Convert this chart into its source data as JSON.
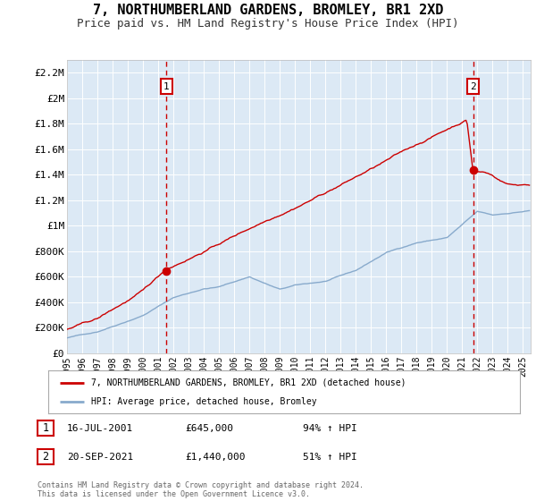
{
  "title": "7, NORTHUMBERLAND GARDENS, BROMLEY, BR1 2XD",
  "subtitle": "Price paid vs. HM Land Registry's House Price Index (HPI)",
  "title_fontsize": 11,
  "subtitle_fontsize": 9,
  "plot_bg_color": "#dce9f5",
  "fig_bg_color": "#ffffff",
  "ylim": [
    0,
    2300000
  ],
  "yticks": [
    0,
    200000,
    400000,
    600000,
    800000,
    1000000,
    1200000,
    1400000,
    1600000,
    1800000,
    2000000,
    2200000
  ],
  "ytick_labels": [
    "£0",
    "£200K",
    "£400K",
    "£600K",
    "£800K",
    "£1M",
    "£1.2M",
    "£1.4M",
    "£1.6M",
    "£1.8M",
    "£2M",
    "£2.2M"
  ],
  "xlim_start": 1995.0,
  "xlim_end": 2025.5,
  "sale1_x": 2001.54,
  "sale1_y": 645000,
  "sale1_label": "1",
  "sale1_date": "16-JUL-2001",
  "sale1_price": "£645,000",
  "sale1_hpi": "94% ↑ HPI",
  "sale2_x": 2021.72,
  "sale2_y": 1440000,
  "sale2_label": "2",
  "sale2_date": "20-SEP-2021",
  "sale2_price": "£1,440,000",
  "sale2_hpi": "51% ↑ HPI",
  "line1_color": "#cc0000",
  "line2_color": "#88aacc",
  "legend1_label": "7, NORTHUMBERLAND GARDENS, BROMLEY, BR1 2XD (detached house)",
  "legend2_label": "HPI: Average price, detached house, Bromley",
  "footnote": "Contains HM Land Registry data © Crown copyright and database right 2024.\nThis data is licensed under the Open Government Licence v3.0."
}
